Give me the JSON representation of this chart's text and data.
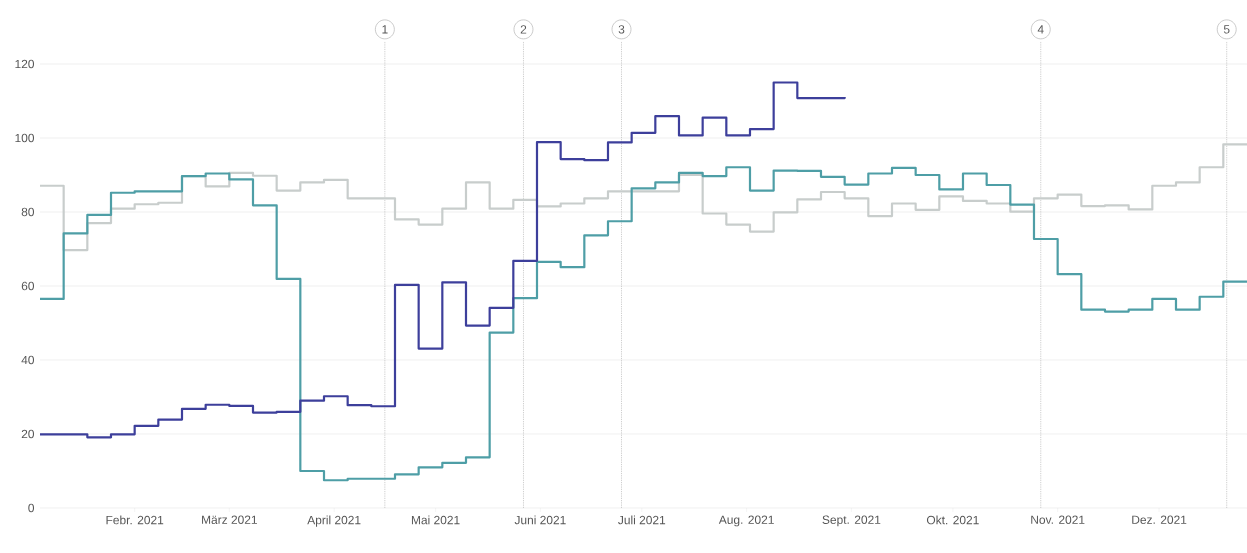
{
  "chart_data": {
    "type": "step",
    "x": [
      "2021-01-04",
      "2021-01-11",
      "2021-01-18",
      "2021-01-25",
      "2021-02-01",
      "2021-02-08",
      "2021-02-15",
      "2021-02-22",
      "2021-03-01",
      "2021-03-08",
      "2021-03-15",
      "2021-03-22",
      "2021-03-29",
      "2021-04-05",
      "2021-04-12",
      "2021-04-19",
      "2021-04-26",
      "2021-05-03",
      "2021-05-10",
      "2021-05-17",
      "2021-05-24",
      "2021-05-31",
      "2021-06-07",
      "2021-06-14",
      "2021-06-21",
      "2021-06-28",
      "2021-07-05",
      "2021-07-12",
      "2021-07-19",
      "2021-07-26",
      "2021-08-02",
      "2021-08-09",
      "2021-08-16",
      "2021-08-23",
      "2021-08-30",
      "2021-09-06",
      "2021-09-13",
      "2021-09-20",
      "2021-09-27",
      "2021-10-04",
      "2021-10-11",
      "2021-10-18",
      "2021-10-25",
      "2021-11-01",
      "2021-11-08",
      "2021-11-15",
      "2021-11-22",
      "2021-11-29",
      "2021-12-06",
      "2021-12-13",
      "2021-12-20",
      "2021-12-27"
    ],
    "xlim": [
      "2021-01-04",
      "2021-12-27"
    ],
    "xticks": [
      {
        "value": "2021-02-01",
        "label": "Febr. 2021"
      },
      {
        "value": "2021-03-01",
        "label": "März 2021"
      },
      {
        "value": "2021-04-01",
        "label": "April 2021"
      },
      {
        "value": "2021-05-01",
        "label": "Mai 2021"
      },
      {
        "value": "2021-06-01",
        "label": "Juni 2021"
      },
      {
        "value": "2021-07-01",
        "label": "Juli 2021"
      },
      {
        "value": "2021-08-01",
        "label": "Aug. 2021"
      },
      {
        "value": "2021-09-01",
        "label": "Sept. 2021"
      },
      {
        "value": "2021-10-01",
        "label": "Okt. 2021"
      },
      {
        "value": "2021-11-01",
        "label": "Nov. 2021"
      },
      {
        "value": "2021-12-01",
        "label": "Dez. 2021"
      }
    ],
    "ylim": [
      0,
      120
    ],
    "yticks": [
      0,
      20,
      40,
      60,
      80,
      100,
      120
    ],
    "grid": "y",
    "series": [
      {
        "color": "#c8cdcc",
        "values": [
          87.1,
          69.7,
          77.0,
          80.9,
          82.1,
          82.5,
          89.7,
          86.9,
          90.6,
          89.8,
          85.8,
          88.0,
          88.7,
          83.7,
          83.7,
          78.0,
          76.6,
          80.9,
          88.0,
          80.9,
          83.3,
          81.5,
          82.3,
          83.7,
          85.6,
          85.6,
          85.6,
          90.0,
          79.6,
          76.6,
          74.7,
          79.9,
          83.4,
          85.4,
          83.7,
          78.9,
          82.3,
          80.6,
          84.2,
          83.0,
          82.3,
          80.1,
          83.7,
          84.7,
          81.6,
          81.8,
          80.7,
          87.1,
          88.0,
          92.1,
          98.3,
          98.3
        ]
      },
      {
        "color": "#4e9ea6",
        "values": [
          56.5,
          74.2,
          79.2,
          85.2,
          85.6,
          85.6,
          89.7,
          90.4,
          88.8,
          81.8,
          61.9,
          10.0,
          7.5,
          7.9,
          7.9,
          9.1,
          11.0,
          12.2,
          13.7,
          47.4,
          56.7,
          66.5,
          65.1,
          73.7,
          77.5,
          86.4,
          88.0,
          90.6,
          89.7,
          92.1,
          85.8,
          91.2,
          91.1,
          89.5,
          87.4,
          90.4,
          91.9,
          90.0,
          86.1,
          90.4,
          87.3,
          82.0,
          72.7,
          63.2,
          53.6,
          53.1,
          53.6,
          56.5,
          53.6,
          57.1,
          61.2,
          61.2
        ]
      },
      {
        "color": "#3d3f9b",
        "x": [
          "2021-01-04",
          "2021-01-11",
          "2021-01-18",
          "2021-01-25",
          "2021-02-01",
          "2021-02-08",
          "2021-02-15",
          "2021-02-22",
          "2021-03-01",
          "2021-03-08",
          "2021-03-15",
          "2021-03-22",
          "2021-03-29",
          "2021-04-05",
          "2021-04-12",
          "2021-04-19",
          "2021-04-26",
          "2021-05-03",
          "2021-05-10",
          "2021-05-17",
          "2021-05-24",
          "2021-05-31",
          "2021-06-07",
          "2021-06-14",
          "2021-06-21",
          "2021-06-28",
          "2021-07-05",
          "2021-07-12",
          "2021-07-19",
          "2021-07-26",
          "2021-08-02",
          "2021-08-09",
          "2021-08-16",
          "2021-08-23",
          "2021-08-30"
        ],
        "values": [
          19.9,
          19.9,
          19.1,
          19.9,
          22.2,
          23.9,
          26.8,
          27.9,
          27.6,
          25.8,
          26.0,
          29.0,
          30.2,
          27.8,
          27.5,
          60.3,
          43.1,
          61.0,
          49.3,
          54.1,
          66.8,
          98.9,
          94.3,
          94.0,
          98.8,
          101.4,
          105.9,
          100.7,
          105.5,
          100.7,
          102.4,
          115.0,
          110.8,
          110.8,
          111.1
        ]
      }
    ],
    "ref_lines": [
      {
        "axis": "x",
        "value": "2021-04-16",
        "label": "1",
        "color": "#b4b4b4",
        "line_style": "dotted"
      },
      {
        "axis": "x",
        "value": "2021-05-27",
        "label": "2",
        "color": "#b4b4b4",
        "line_style": "dotted"
      },
      {
        "axis": "x",
        "value": "2021-06-25",
        "label": "3",
        "color": "#b4b4b4",
        "line_style": "dotted"
      },
      {
        "axis": "x",
        "value": "2021-10-27",
        "label": "4",
        "color": "#b4b4b4",
        "line_style": "dotted"
      },
      {
        "axis": "x",
        "value": "2021-12-21",
        "label": "5",
        "color": "#b4b4b4",
        "line_style": "dotted"
      }
    ]
  }
}
